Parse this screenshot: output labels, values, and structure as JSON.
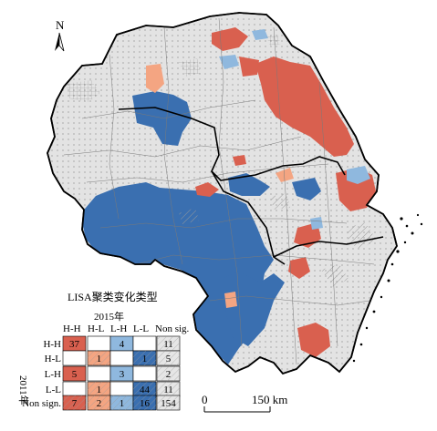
{
  "north_label": "N",
  "legend": {
    "title": "LISA聚类变化类型",
    "col_year": "2015年",
    "row_year": "2011年",
    "col_headers": [
      "H-H",
      "H-L",
      "L-H",
      "L-L",
      "Non sig."
    ],
    "row_headers": [
      "H-H",
      "H-L",
      "L-H",
      "L-L",
      "Non sign."
    ],
    "matrix": [
      [
        "37",
        "",
        "4",
        "",
        "11"
      ],
      [
        "",
        "1",
        "",
        "1",
        "5"
      ],
      [
        "5",
        "",
        "3",
        "",
        "2"
      ],
      [
        "",
        "1",
        "",
        "44",
        "11"
      ],
      [
        "7",
        "2",
        "1",
        "16",
        "154"
      ]
    ],
    "colors": {
      "hh": "#d9604f",
      "hl": "#f4a582",
      "lh": "#8fb8de",
      "ll": "#3a6fb0",
      "ns": "#e6e6e6",
      "hatch": "#bdbdbd"
    }
  },
  "scale_bar": {
    "start_label": "0",
    "end_label": "150 km"
  }
}
